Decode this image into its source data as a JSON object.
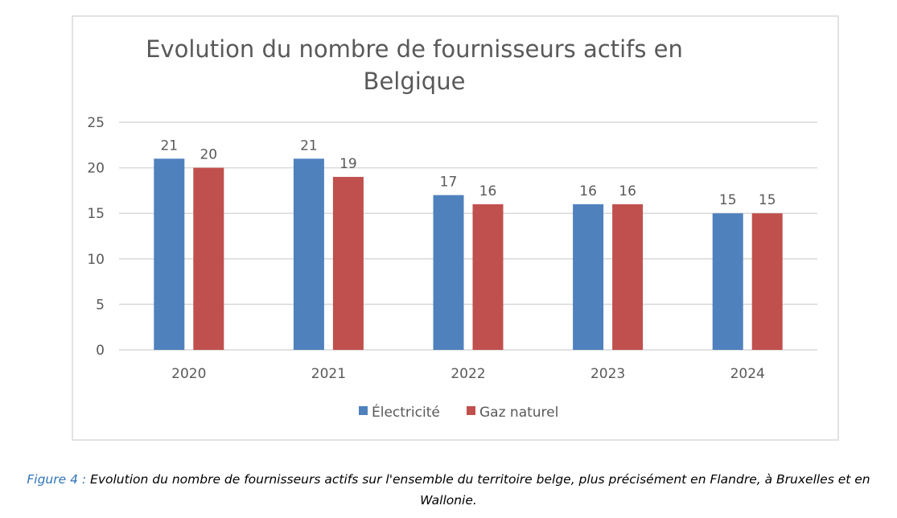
{
  "chart_data": {
    "type": "bar",
    "title_lines": [
      "Evolution du nombre de fournisseurs actifs en",
      "Belgique"
    ],
    "categories": [
      "2020",
      "2021",
      "2022",
      "2023",
      "2024"
    ],
    "series": [
      {
        "name": "Électricité",
        "values": [
          21,
          21,
          17,
          16,
          15
        ],
        "color": "#4f81bd"
      },
      {
        "name": "Gaz naturel",
        "values": [
          20,
          19,
          16,
          16,
          15
        ],
        "color": "#c0504d"
      }
    ],
    "ylim": [
      0,
      25
    ],
    "yticks": [
      0,
      5,
      10,
      15,
      20,
      25
    ],
    "grid": true,
    "legend": "bottom"
  },
  "caption": {
    "label": "Figure 4 : ",
    "text": "Evolution du nombre de fournisseurs actifs sur l'ensemble du territoire belge, plus précisément en Flandre, à Bruxelles et en Wallonie."
  },
  "colors": {
    "grid": "#d9d9d9",
    "frame": "#d9d9d9",
    "text": "#595959",
    "caption_label": "#2e74b5"
  }
}
